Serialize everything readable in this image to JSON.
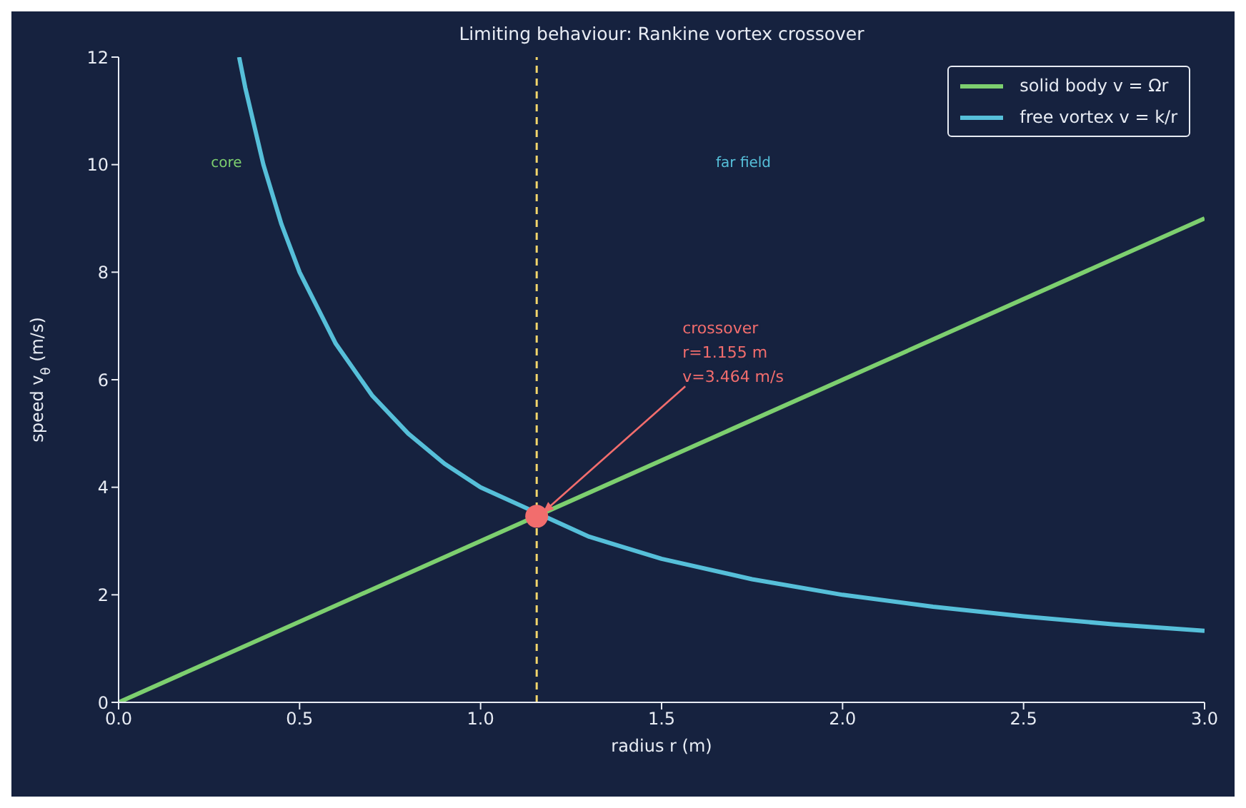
{
  "chart_data": {
    "type": "line",
    "title": "Limiting behaviour: Rankine vortex crossover",
    "xlabel": "radius r (m)",
    "ylabel": "speed v$_{θ}$ (m/s)",
    "xlim": [
      0,
      3
    ],
    "ylim": [
      0,
      12
    ],
    "xticks": [
      {
        "value": 0,
        "label": "0.0"
      },
      0.5,
      {
        "value": 1,
        "label": "1.0"
      },
      1.5,
      {
        "value": 2,
        "label": "2.0"
      },
      2.5,
      {
        "value": 3,
        "label": "3.0"
      }
    ],
    "yticks": [
      0,
      2,
      4,
      6,
      8,
      10,
      12
    ],
    "legend": "top right",
    "series": [
      {
        "name": "solid body v = Ωr",
        "color": "#7dcf6f",
        "x": [
          0,
          3
        ],
        "values": [
          0,
          9
        ]
      },
      {
        "name": "free vortex v = k/r",
        "color": "#56bfd9",
        "x": [
          0.333,
          0.35,
          0.4,
          0.45,
          0.5,
          0.6,
          0.7,
          0.8,
          0.9,
          1.0,
          1.3,
          1.5,
          1.75,
          2.0,
          2.25,
          2.5,
          2.75,
          3.0
        ],
        "values": [
          12,
          11.43,
          10,
          8.89,
          8,
          6.67,
          5.71,
          5,
          4.44,
          4,
          3.08,
          2.67,
          2.29,
          2,
          1.78,
          1.6,
          1.45,
          1.33
        ]
      },
      {
        "type": "scatter",
        "color": "#f26d6d",
        "x": [
          1.155
        ],
        "values": [
          3.46
        ]
      }
    ],
    "ref_lines": [
      {
        "axis": "x",
        "value": 1.155,
        "color": "#f2d56b",
        "line_style": "dashed"
      }
    ],
    "annotations": [
      "core",
      "far field",
      {
        "text": "crossover\nr=1.155 m\nv=3.464 m/s",
        "x": 1.155,
        "y": 3.46
      }
    ]
  }
}
